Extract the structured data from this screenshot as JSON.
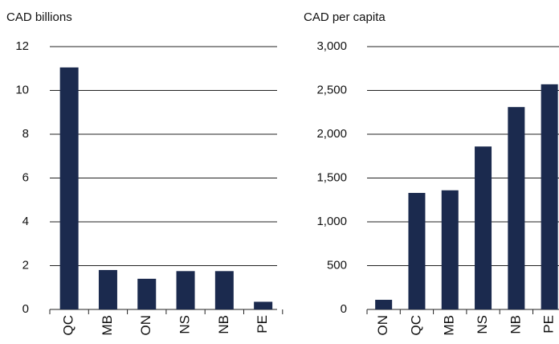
{
  "chart_data": [
    {
      "type": "bar",
      "title": "CAD billions",
      "categories": [
        "QC",
        "MB",
        "ON",
        "NS",
        "NB",
        "PE"
      ],
      "values": [
        11.05,
        1.8,
        1.4,
        1.75,
        1.75,
        0.35
      ],
      "color": "#1b2a4e",
      "ylim": [
        0,
        12
      ],
      "yticks": [
        0,
        2,
        4,
        6,
        8,
        10,
        12
      ],
      "grid": true
    },
    {
      "type": "bar",
      "title": "CAD per capita",
      "categories": [
        "ON",
        "QC",
        "MB",
        "NS",
        "NB",
        "PE"
      ],
      "values": [
        110,
        1330,
        1360,
        1860,
        2310,
        2570
      ],
      "color": "#1b2a4e",
      "ylim": [
        0,
        3000
      ],
      "yticks": [
        0,
        500,
        {
          "value": 1000,
          "label": "1,000"
        },
        {
          "value": 1500,
          "label": "1,500"
        },
        {
          "value": 2000,
          "label": "2,000"
        },
        {
          "value": 2500,
          "label": "2,500"
        },
        {
          "value": 3000,
          "label": "3,000"
        }
      ],
      "grid": true
    }
  ]
}
